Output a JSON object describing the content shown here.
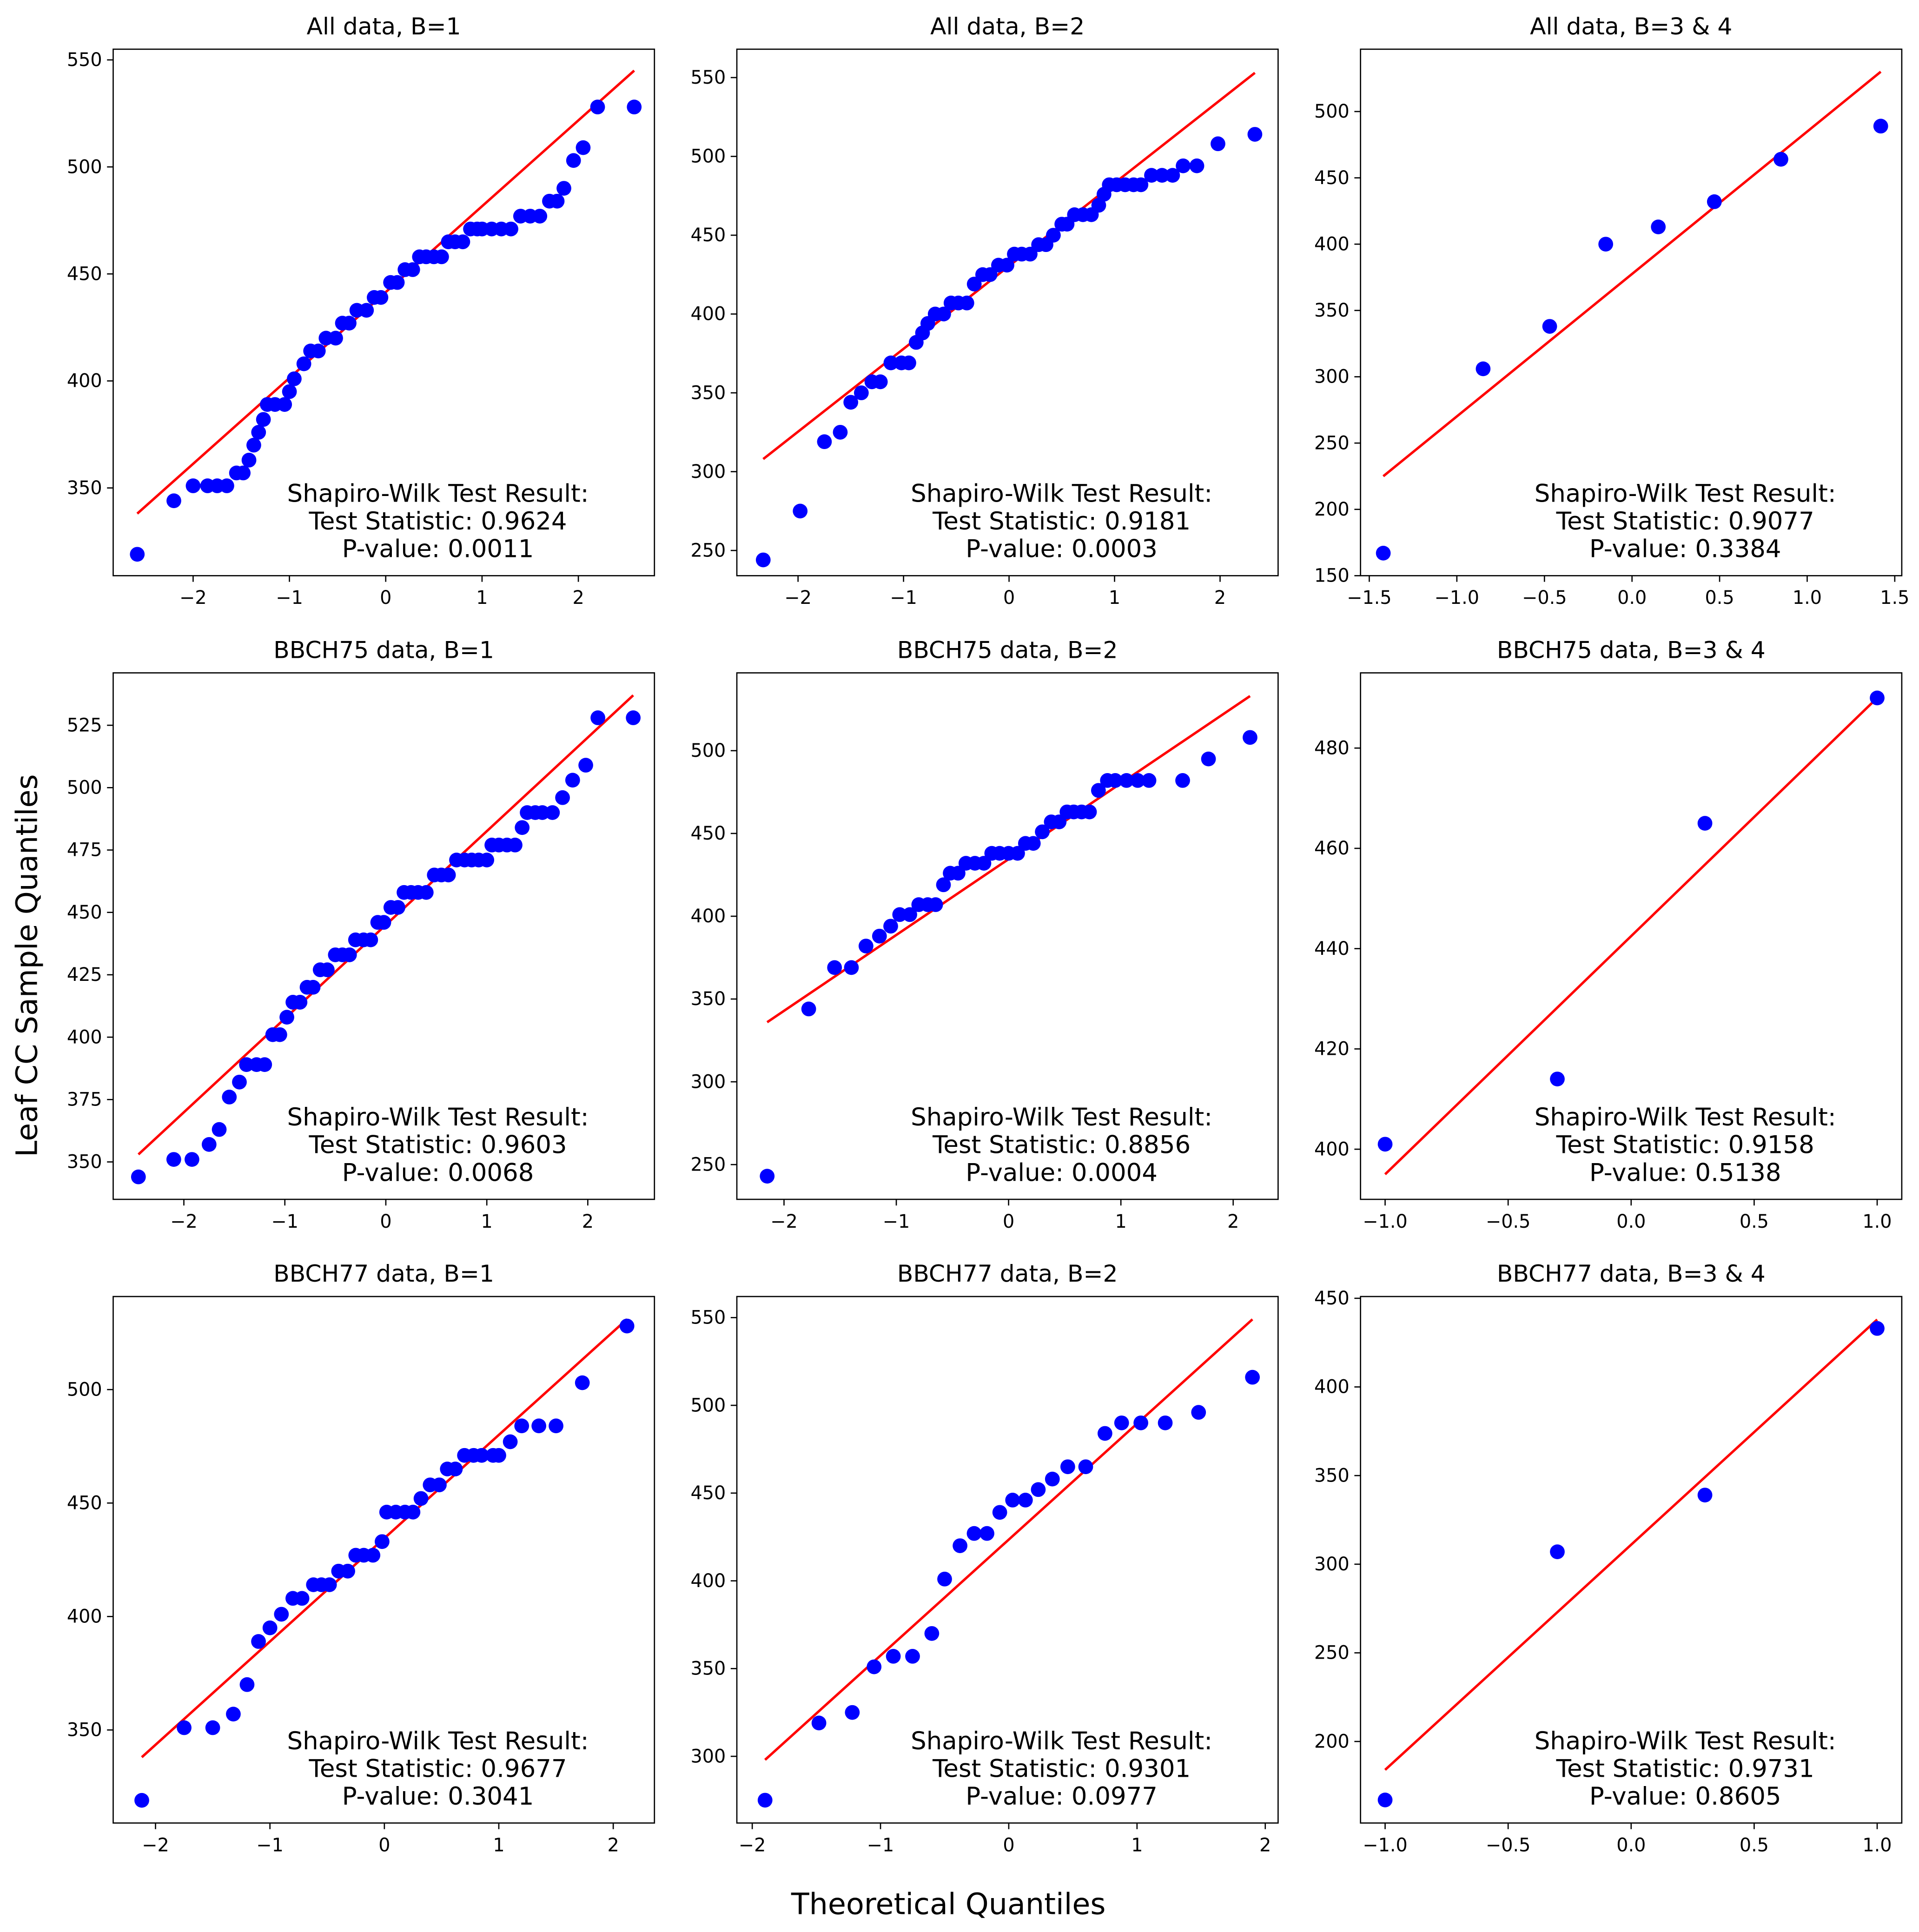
{
  "figure": {
    "xlabel": "Theoretical Quantiles",
    "ylabel": "Leaf CC Sample Quantiles"
  },
  "chart_data": [
    {
      "type": "scatter",
      "title": "All data, B=1",
      "color": "#0000ff",
      "x": [
        -2.58,
        -2.2,
        -2.0,
        -1.85,
        -1.75,
        -1.65,
        -1.55,
        -1.48,
        -1.42,
        -1.37,
        -1.32,
        -1.27,
        -1.23,
        -1.15,
        -1.05,
        -1.0,
        -0.95,
        -0.85,
        -0.78,
        -0.7,
        -0.62,
        -0.52,
        -0.45,
        -0.38,
        -0.3,
        -0.2,
        -0.12,
        -0.05,
        0.05,
        0.12,
        0.2,
        0.28,
        0.35,
        0.42,
        0.5,
        0.58,
        0.65,
        0.72,
        0.8,
        0.88,
        0.95,
        1.0,
        1.1,
        1.2,
        1.3,
        1.4,
        1.5,
        1.6,
        1.7,
        1.78,
        1.85,
        1.95,
        2.05,
        2.2,
        2.58
      ],
      "values": [
        319,
        344,
        351,
        351,
        351,
        351,
        357,
        357,
        363,
        370,
        376,
        382,
        389,
        389,
        389,
        395,
        401,
        408,
        414,
        414,
        420,
        420,
        427,
        427,
        433,
        433,
        439,
        439,
        446,
        446,
        452,
        452,
        458,
        458,
        458,
        458,
        465,
        465,
        465,
        471,
        471,
        471,
        471,
        471,
        471,
        477,
        477,
        477,
        484,
        484,
        490,
        503,
        509,
        528,
        528
      ],
      "fit_line": {
        "color": "#ff0000",
        "x": [
          -2.58,
          2.58
        ],
        "values": [
          338,
          545
        ]
      },
      "annotation": [
        "Shapiro-Wilk Test Result:",
        "Test Statistic: 0.9624",
        "P-value: 0.0011"
      ],
      "xlim": [
        -2.83,
        2.79
      ],
      "ylim": [
        309,
        555
      ],
      "xticks": [
        {
          "value": -2,
          "label": "−2"
        },
        {
          "value": -1,
          "label": "−1"
        },
        0,
        1,
        2
      ],
      "yticks": [
        350,
        400,
        450,
        500,
        550
      ]
    },
    {
      "type": "scatter",
      "title": "All data, B=2",
      "color": "#0000ff",
      "x": [
        -2.33,
        -1.98,
        -1.75,
        -1.6,
        -1.5,
        -1.4,
        -1.3,
        -1.22,
        -1.12,
        -1.02,
        -0.95,
        -0.88,
        -0.82,
        -0.77,
        -0.7,
        -0.62,
        -0.55,
        -0.48,
        -0.4,
        -0.33,
        -0.25,
        -0.18,
        -0.1,
        -0.02,
        0.05,
        0.12,
        0.2,
        0.28,
        0.35,
        0.42,
        0.5,
        0.55,
        0.62,
        0.7,
        0.78,
        0.85,
        0.9,
        0.95,
        1.02,
        1.1,
        1.18,
        1.25,
        1.35,
        1.45,
        1.55,
        1.65,
        1.78,
        1.98,
        2.33
      ],
      "values": [
        244,
        275,
        319,
        325,
        344,
        350,
        357,
        357,
        369,
        369,
        369,
        382,
        388,
        394,
        400,
        400,
        407,
        407,
        407,
        419,
        425,
        425,
        431,
        431,
        438,
        438,
        438,
        444,
        444,
        450,
        457,
        457,
        463,
        463,
        463,
        469,
        476,
        482,
        482,
        482,
        482,
        482,
        488,
        488,
        488,
        494,
        494,
        508,
        514
      ],
      "fit_line": {
        "color": "#ff0000",
        "x": [
          -2.33,
          2.33
        ],
        "values": [
          308,
          553
        ]
      },
      "annotation": [
        "Shapiro-Wilk Test Result:",
        "Test Statistic: 0.9181",
        "P-value: 0.0003"
      ],
      "xlim": [
        -2.58,
        2.55
      ],
      "ylim": [
        234,
        568
      ],
      "xticks": [
        {
          "value": -2,
          "label": "−2"
        },
        {
          "value": -1,
          "label": "−1"
        },
        0,
        1,
        2
      ],
      "yticks": [
        250,
        300,
        350,
        400,
        450,
        500,
        550
      ]
    },
    {
      "type": "scatter",
      "title": "All data, B=3 & 4",
      "color": "#0000ff",
      "x": [
        -1.42,
        -0.85,
        -0.47,
        -0.15,
        0.15,
        0.47,
        0.85,
        1.42
      ],
      "values": [
        167,
        306,
        338,
        400,
        413,
        432,
        464,
        489
      ],
      "fit_line": {
        "color": "#ff0000",
        "x": [
          -1.42,
          1.42
        ],
        "values": [
          225,
          530
        ]
      },
      "annotation": [
        "Shapiro-Wilk Test Result:",
        "Test Statistic: 0.9077",
        "P-value: 0.3384"
      ],
      "xlim": [
        -1.55,
        1.54
      ],
      "ylim": [
        150,
        547
      ],
      "xticks": [
        {
          "value": -1.5,
          "label": "−1.5"
        },
        {
          "value": -1,
          "label": "−1.0"
        },
        {
          "value": -0.5,
          "label": "−0.5"
        },
        {
          "value": 0,
          "label": "0.0"
        },
        0.5,
        {
          "value": 1,
          "label": "1.0"
        },
        1.5
      ],
      "yticks": [
        150,
        200,
        250,
        300,
        350,
        400,
        450,
        500
      ]
    },
    {
      "type": "scatter",
      "title": "BBCH75 data, B=1",
      "color": "#0000ff",
      "x": [
        -2.45,
        -2.1,
        -1.92,
        -1.75,
        -1.65,
        -1.55,
        -1.45,
        -1.38,
        -1.28,
        -1.2,
        -1.12,
        -1.05,
        -0.98,
        -0.92,
        -0.85,
        -0.78,
        -0.72,
        -0.65,
        -0.58,
        -0.5,
        -0.43,
        -0.36,
        -0.3,
        -0.22,
        -0.15,
        -0.08,
        -0.02,
        0.05,
        0.12,
        0.18,
        0.25,
        0.32,
        0.4,
        0.48,
        0.55,
        0.62,
        0.7,
        0.78,
        0.85,
        0.92,
        1.0,
        1.05,
        1.12,
        1.2,
        1.28,
        1.35,
        1.4,
        1.48,
        1.55,
        1.65,
        1.75,
        1.85,
        1.98,
        2.1,
        2.45
      ],
      "values": [
        344,
        351,
        351,
        357,
        363,
        376,
        382,
        389,
        389,
        389,
        401,
        401,
        408,
        414,
        414,
        420,
        420,
        427,
        427,
        433,
        433,
        433,
        439,
        439,
        439,
        446,
        446,
        452,
        452,
        458,
        458,
        458,
        458,
        465,
        465,
        465,
        471,
        471,
        471,
        471,
        471,
        477,
        477,
        477,
        477,
        484,
        490,
        490,
        490,
        490,
        496,
        503,
        509,
        528,
        528
      ],
      "fit_line": {
        "color": "#ff0000",
        "x": [
          -2.45,
          2.45
        ],
        "values": [
          353,
          537
        ]
      },
      "annotation": [
        "Shapiro-Wilk Test Result:",
        "Test Statistic: 0.9603",
        "P-value: 0.0068"
      ],
      "xlim": [
        -2.7,
        2.66
      ],
      "ylim": [
        335,
        546
      ],
      "xticks": [
        {
          "value": -2,
          "label": "−2"
        },
        {
          "value": -1,
          "label": "−1"
        },
        0,
        1,
        2
      ],
      "yticks": [
        350,
        375,
        400,
        425,
        450,
        475,
        500,
        525
      ]
    },
    {
      "type": "scatter",
      "title": "BBCH75 data, B=2",
      "color": "#0000ff",
      "x": [
        -2.15,
        -1.78,
        -1.55,
        -1.4,
        -1.27,
        -1.15,
        -1.05,
        -0.97,
        -0.88,
        -0.8,
        -0.72,
        -0.65,
        -0.58,
        -0.52,
        -0.45,
        -0.38,
        -0.3,
        -0.22,
        -0.15,
        -0.08,
        0.0,
        0.08,
        0.15,
        0.22,
        0.3,
        0.38,
        0.45,
        0.52,
        0.58,
        0.65,
        0.72,
        0.8,
        0.88,
        0.95,
        1.05,
        1.15,
        1.25,
        1.55,
        1.78,
        2.15
      ],
      "values": [
        243,
        344,
        369,
        369,
        382,
        388,
        394,
        401,
        401,
        407,
        407,
        407,
        419,
        426,
        426,
        432,
        432,
        432,
        438,
        438,
        438,
        438,
        444,
        444,
        451,
        457,
        457,
        463,
        463,
        463,
        463,
        476,
        482,
        482,
        482,
        482,
        482,
        482,
        495,
        508
      ],
      "fit_line": {
        "color": "#ff0000",
        "x": [
          -2.15,
          2.15
        ],
        "values": [
          336,
          533
        ]
      },
      "annotation": [
        "Shapiro-Wilk Test Result:",
        "Test Statistic: 0.8856",
        "P-value: 0.0004"
      ],
      "xlim": [
        -2.42,
        2.4
      ],
      "ylim": [
        229,
        547
      ],
      "xticks": [
        {
          "value": -2,
          "label": "−2"
        },
        {
          "value": -1,
          "label": "−1"
        },
        0,
        1,
        2
      ],
      "yticks": [
        250,
        300,
        350,
        400,
        450,
        500
      ]
    },
    {
      "type": "scatter",
      "title": "BBCH75 data, B=3 & 4",
      "color": "#0000ff",
      "x": [
        -1.0,
        -0.3,
        0.3,
        1.0
      ],
      "values": [
        401,
        414,
        465,
        490
      ],
      "fit_line": {
        "color": "#ff0000",
        "x": [
          -1.0,
          1.0
        ],
        "values": [
          395,
          490
        ]
      },
      "annotation": [
        "Shapiro-Wilk Test Result:",
        "Test Statistic: 0.9158",
        "P-value: 0.5138"
      ],
      "xlim": [
        -1.1,
        1.1
      ],
      "ylim": [
        390,
        495
      ],
      "xticks": [
        {
          "value": -1,
          "label": "−1.0"
        },
        {
          "value": -0.5,
          "label": "−0.5"
        },
        {
          "value": 0,
          "label": "0.0"
        },
        0.5,
        {
          "value": 1,
          "label": "1.0"
        }
      ],
      "yticks": [
        400,
        420,
        440,
        460,
        480
      ]
    },
    {
      "type": "scatter",
      "title": "BBCH77 data, B=1",
      "color": "#0000ff",
      "x": [
        -2.12,
        -1.75,
        -1.5,
        -1.32,
        -1.2,
        -1.1,
        -1.0,
        -0.9,
        -0.8,
        -0.72,
        -0.62,
        -0.55,
        -0.48,
        -0.4,
        -0.32,
        -0.25,
        -0.18,
        -0.1,
        -0.02,
        0.02,
        0.1,
        0.18,
        0.25,
        0.32,
        0.4,
        0.48,
        0.55,
        0.62,
        0.7,
        0.78,
        0.85,
        0.95,
        1.0,
        1.1,
        1.2,
        1.35,
        1.5,
        1.73,
        2.12
      ],
      "values": [
        319,
        351,
        351,
        357,
        370,
        389,
        395,
        401,
        408,
        408,
        414,
        414,
        414,
        420,
        420,
        427,
        427,
        427,
        433,
        446,
        446,
        446,
        446,
        452,
        458,
        458,
        465,
        465,
        471,
        471,
        471,
        471,
        471,
        477,
        484,
        484,
        484,
        503,
        528
      ],
      "fit_line": {
        "color": "#ff0000",
        "x": [
          -2.12,
          2.12
        ],
        "values": [
          338,
          531
        ]
      },
      "annotation": [
        "Shapiro-Wilk Test Result:",
        "Test Statistic: 0.9677",
        "P-value: 0.3041"
      ],
      "xlim": [
        -2.37,
        2.36
      ],
      "ylim": [
        309,
        541
      ],
      "xticks": [
        {
          "value": -2,
          "label": "−2"
        },
        {
          "value": -1,
          "label": "−1"
        },
        0,
        1,
        2
      ],
      "yticks": [
        350,
        400,
        450,
        500
      ]
    },
    {
      "type": "scatter",
      "title": "BBCH77 data, B=2",
      "color": "#0000ff",
      "x": [
        -1.9,
        -1.48,
        -1.22,
        -1.05,
        -0.9,
        -0.75,
        -0.6,
        -0.5,
        -0.38,
        -0.27,
        -0.17,
        -0.07,
        0.03,
        0.13,
        0.23,
        0.34,
        0.46,
        0.6,
        0.75,
        0.88,
        1.03,
        1.22,
        1.48,
        1.9
      ],
      "values": [
        275,
        319,
        325,
        351,
        357,
        357,
        370,
        401,
        420,
        427,
        427,
        439,
        446,
        446,
        452,
        458,
        465,
        465,
        484,
        490,
        490,
        490,
        496,
        516
      ],
      "fit_line": {
        "color": "#ff0000",
        "x": [
          -1.9,
          1.9
        ],
        "values": [
          298,
          549
        ]
      },
      "annotation": [
        "Shapiro-Wilk Test Result:",
        "Test Statistic: 0.9301",
        "P-value: 0.0977"
      ],
      "xlim": [
        -2.12,
        2.1
      ],
      "ylim": [
        262,
        562
      ],
      "xticks": [
        {
          "value": -2,
          "label": "−2"
        },
        {
          "value": -1,
          "label": "−1"
        },
        0,
        1,
        2
      ],
      "yticks": [
        300,
        350,
        400,
        450,
        500,
        550
      ]
    },
    {
      "type": "scatter",
      "title": "BBCH77 data, B=3 & 4",
      "color": "#0000ff",
      "x": [
        -1.0,
        -0.3,
        0.3,
        1.0
      ],
      "values": [
        167,
        307,
        339,
        433
      ],
      "fit_line": {
        "color": "#ff0000",
        "x": [
          -1.0,
          1.0
        ],
        "values": [
          184,
          438
        ]
      },
      "annotation": [
        "Shapiro-Wilk Test Result:",
        "Test Statistic: 0.9731",
        "P-value: 0.8605"
      ],
      "xlim": [
        -1.1,
        1.1
      ],
      "ylim": [
        154,
        451
      ],
      "xticks": [
        {
          "value": -1,
          "label": "−1.0"
        },
        {
          "value": -0.5,
          "label": "−0.5"
        },
        {
          "value": 0,
          "label": "0.0"
        },
        0.5,
        {
          "value": 1,
          "label": "1.0"
        }
      ],
      "yticks": [
        200,
        250,
        300,
        350,
        400,
        450
      ]
    }
  ]
}
